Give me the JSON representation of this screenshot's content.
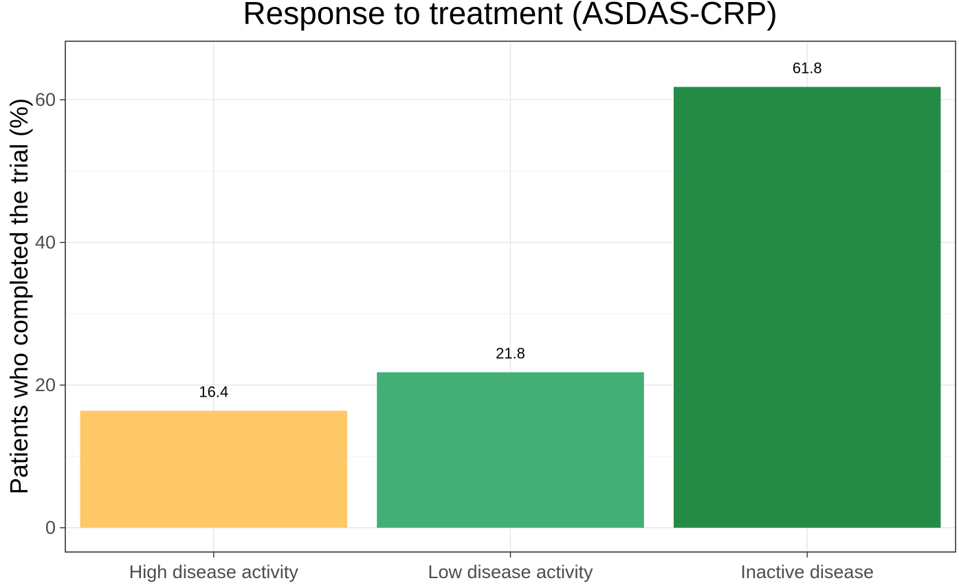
{
  "chart_data": {
    "type": "bar",
    "title": "Response to treatment (ASDAS-CRP)",
    "xlabel": "",
    "ylabel": "Patients who completed the trial (%)",
    "categories": [
      "High disease activity",
      "Low disease activity",
      "Inactive disease"
    ],
    "values": [
      16.4,
      21.8,
      61.8
    ],
    "data_labels": [
      "16.4",
      "21.8",
      "61.8"
    ],
    "colors": [
      "#FEC868",
      "#43AE76",
      "#248B46"
    ],
    "ylim": [
      -3.4,
      68.2
    ],
    "yticks": [
      0,
      20,
      40,
      60
    ],
    "ytick_labels": [
      "0",
      "20",
      "40",
      "60"
    ],
    "grid": true,
    "legend": "none"
  }
}
